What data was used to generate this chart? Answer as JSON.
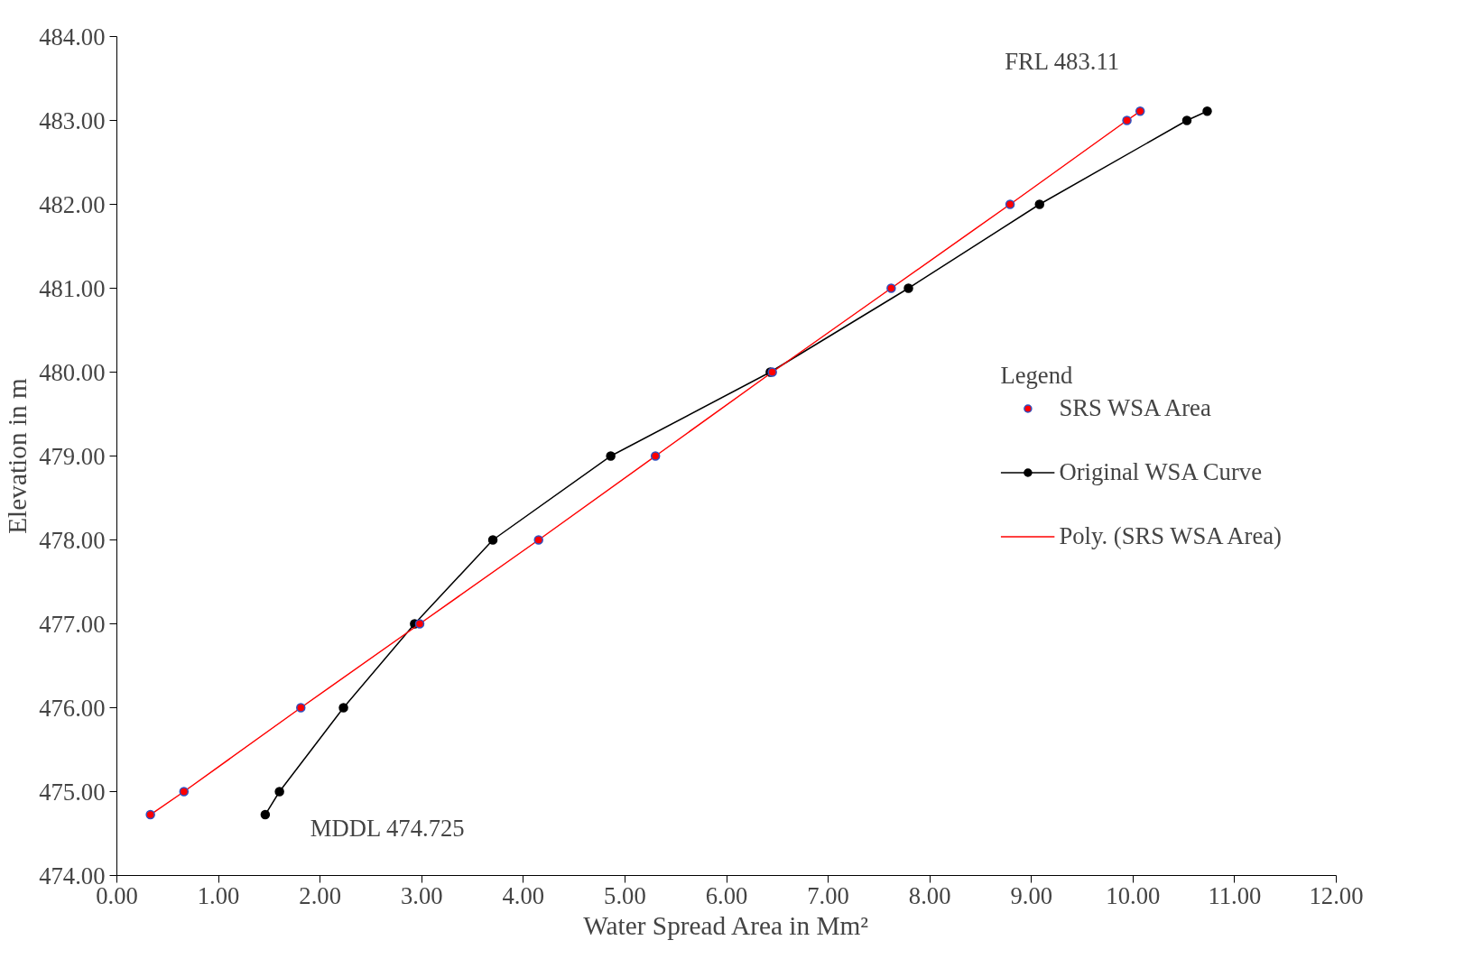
{
  "chart_data": {
    "type": "line",
    "xlabel": "Water Spread Area in Mm²",
    "ylabel": "Elevation in m",
    "legend_title": "Legend",
    "xlim": [
      0,
      12
    ],
    "ylim": [
      474,
      484
    ],
    "xticks": [
      {
        "value": 0,
        "label": "0.00"
      },
      {
        "value": 1,
        "label": "1.00"
      },
      {
        "value": 2,
        "label": "2.00"
      },
      {
        "value": 3,
        "label": "3.00"
      },
      {
        "value": 4,
        "label": "4.00"
      },
      {
        "value": 5,
        "label": "5.00"
      },
      {
        "value": 6,
        "label": "6.00"
      },
      {
        "value": 7,
        "label": "7.00"
      },
      {
        "value": 8,
        "label": "8.00"
      },
      {
        "value": 9,
        "label": "9.00"
      },
      {
        "value": 10,
        "label": "10.00"
      },
      {
        "value": 11,
        "label": "11.00"
      },
      {
        "value": 12,
        "label": "12.00"
      }
    ],
    "yticks": [
      {
        "value": 474,
        "label": "474.00"
      },
      {
        "value": 475,
        "label": "475.00"
      },
      {
        "value": 476,
        "label": "476.00"
      },
      {
        "value": 477,
        "label": "477.00"
      },
      {
        "value": 478,
        "label": "478.00"
      },
      {
        "value": 479,
        "label": "479.00"
      },
      {
        "value": 480,
        "label": "480.00"
      },
      {
        "value": 481,
        "label": "481.00"
      },
      {
        "value": 482,
        "label": "482.00"
      },
      {
        "value": 483,
        "label": "483.00"
      },
      {
        "value": 484,
        "label": "484.00"
      }
    ],
    "grid": false,
    "legend": "right",
    "series": [
      {
        "name": "SRS WSA Area",
        "type": "scatter",
        "marker": "circle",
        "color": "#ff0000",
        "x": [
          0.33,
          0.66,
          1.81,
          2.98,
          4.15,
          5.3,
          6.45,
          7.62,
          8.79,
          9.94,
          10.07
        ],
        "values": [
          474.725,
          475,
          476,
          477,
          478,
          479,
          480,
          481,
          482,
          483,
          483.11
        ]
      },
      {
        "name": "Original WSA Curve",
        "marker": "circle",
        "color": "#000000",
        "x": [
          1.46,
          1.6,
          2.23,
          2.93,
          3.7,
          4.86,
          6.43,
          7.79,
          9.08,
          10.53,
          10.73
        ],
        "values": [
          474.725,
          475,
          476,
          477,
          478,
          479,
          480,
          481,
          482,
          483,
          483.11
        ]
      },
      {
        "name": "Poly. (SRS WSA Area)",
        "marker": "none",
        "color": "#ff0000",
        "x": [
          0.33,
          0.66,
          1.81,
          2.98,
          4.15,
          5.3,
          6.45,
          7.62,
          8.79,
          9.94,
          10.07
        ],
        "values": [
          474.725,
          475,
          476,
          477,
          478,
          479,
          480,
          481,
          482,
          483,
          483.11
        ]
      }
    ],
    "annotations": [
      {
        "text": "FRL 483.11",
        "x": 10.07,
        "y": 483.11
      },
      {
        "text": "MDDL  474.725",
        "x": 1.46,
        "y": 474.725
      }
    ]
  }
}
